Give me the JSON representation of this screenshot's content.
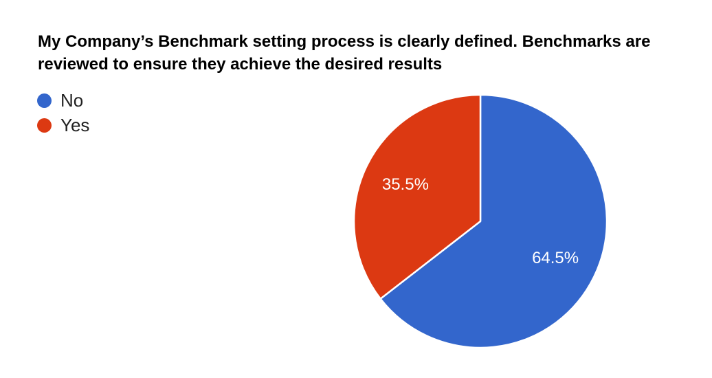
{
  "header": {
    "title": "My Company’s Benchmark setting process is clearly defined. Benchmarks are reviewed to ensure they achieve the desired results"
  },
  "legend": {
    "items": [
      {
        "label": "No",
        "color": "#3366CC"
      },
      {
        "label": "Yes",
        "color": "#DC3912"
      }
    ]
  },
  "chart_data": {
    "type": "pie",
    "title": "My Company’s Benchmark setting process is clearly defined. Benchmarks are reviewed to ensure they achieve the desired results",
    "labels": [
      "No",
      "Yes"
    ],
    "values": [
      64.5,
      35.5
    ],
    "unit": "percent",
    "slice_labels": [
      "64.5%",
      "35.5%"
    ],
    "colors": [
      "#3366CC",
      "#DC3912"
    ],
    "slice_label_color": "#ffffff",
    "separator_color": "#ffffff",
    "background": "#ffffff",
    "start_angle_deg": 0,
    "direction": "clockwise",
    "legend_position": "top-left",
    "label_radius_fraction": 0.66
  }
}
